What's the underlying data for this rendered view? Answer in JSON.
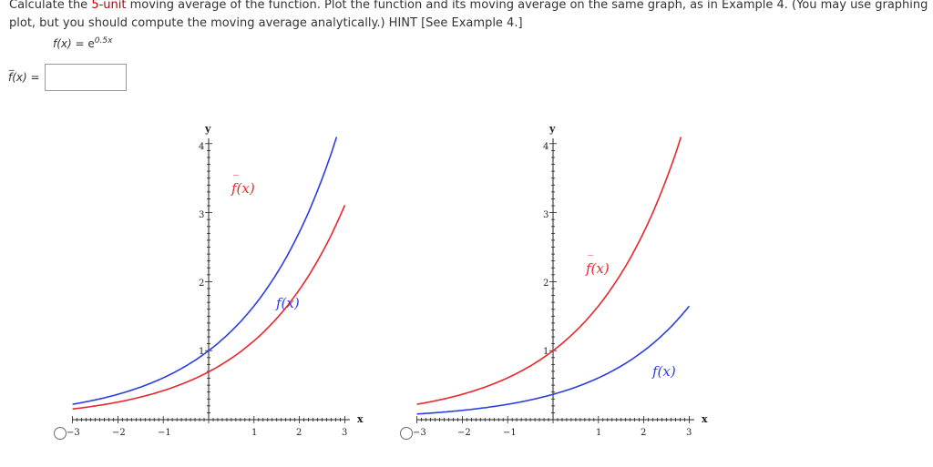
{
  "question": {
    "text_before": "Calculate the ",
    "highlight": "5-unit",
    "text_after": " moving average of the function. Plot the function and its moving average on the same graph, as in Example 4. (You may use graphing technology fo",
    "line2": "plot, but you should compute the moving average analytically.) HINT [See Example 4.]"
  },
  "function_def": {
    "lhs": "f(x) = ",
    "base": "e",
    "exponent": "0.5x"
  },
  "answer": {
    "label": "f(x) = ",
    "value": ""
  },
  "graphs": [
    {
      "id": "option-a",
      "y_axis_label": "y",
      "x_axis_label": "x",
      "x_ticks": [
        "−3",
        "−2",
        "−1",
        "1",
        "2",
        "3"
      ],
      "y_ticks": [
        "1",
        "2",
        "3",
        "4"
      ],
      "curve_labels": {
        "avg": "f(x)",
        "f": "f(x)"
      }
    },
    {
      "id": "option-b",
      "y_axis_label": "y",
      "x_axis_label": "x",
      "x_ticks": [
        "−3",
        "−2",
        "−1",
        "1",
        "2",
        "3"
      ],
      "y_ticks": [
        "1",
        "2",
        "3",
        "4"
      ],
      "curve_labels": {
        "avg": "f(x)",
        "f": "f(x)"
      }
    }
  ],
  "colors": {
    "average_curve": "#e8262c",
    "function_curve": "#2b3de0",
    "highlight_text": "#c00000"
  }
}
